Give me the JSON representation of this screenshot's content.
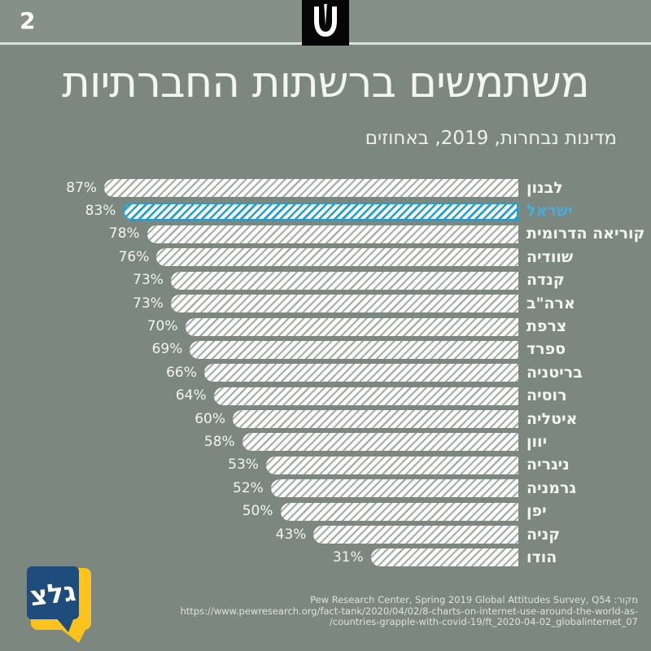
{
  "header": {
    "page_number": "2",
    "station_logo_icon": "shin-microphone-icon"
  },
  "title": "משתמשים ברשתות החברתיות",
  "subtitle": "מדינות נבחרות, 2019, באחוזים",
  "chart_data": {
    "type": "bar",
    "orientation": "horizontal-rtl",
    "unit": "%",
    "title": "משתמשים ברשתות החברתיות",
    "subtitle": "מדינות נבחרות, 2019, באחוזים",
    "xlim": [
      0,
      100
    ],
    "grid": false,
    "categories": [
      "לבנון",
      "ישראל",
      "קוריאה הדרומית",
      "שוודיה",
      "קנדה",
      "ארה\"ב",
      "צרפת",
      "ספרד",
      "בריטניה",
      "רוסיה",
      "איטליה",
      "יוון",
      "ניגריה",
      "גרמניה",
      "יפן",
      "קניה",
      "הודו"
    ],
    "values": [
      87,
      83,
      78,
      76,
      73,
      73,
      70,
      69,
      66,
      64,
      60,
      58,
      53,
      52,
      50,
      43,
      31
    ],
    "value_labels": [
      "87%",
      "83%",
      "78%",
      "76%",
      "73%",
      "73%",
      "70%",
      "69%",
      "66%",
      "64%",
      "60%",
      "58%",
      "53%",
      "52%",
      "50%",
      "43%",
      "31%"
    ],
    "highlight_index": 1,
    "highlight_category": "ישראל",
    "colors": {
      "bar_fill": "#ffffff",
      "bar_stripe": "#a5afa8",
      "highlight_blue": "#1ea0d7",
      "highlight_label": "#48acdf",
      "label_text": "#f3f5f1",
      "background": "#7b877f"
    }
  },
  "source": {
    "line1": "מקור: Pew Research Center, Spring 2019 Global Attitudes Survey, Q54",
    "line2": "https://www.pewresearch.org/fact-tank/2020/04/02/8-charts-on-internet-use-around-the-world-as-",
    "line3": "/countries-grapple-with-covid-19/ft_2020-04-02_globalinternet_07"
  },
  "footer_logo": {
    "text": "גלצ",
    "blue": "#1d4c7d",
    "yellow": "#fcc31c"
  }
}
